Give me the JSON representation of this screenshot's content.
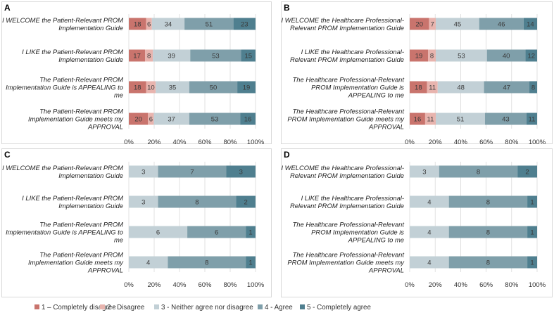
{
  "legend": [
    {
      "label": "1 – Completely disagree",
      "color": "#c9746d"
    },
    {
      "label": "2 - Disagree",
      "color": "#e8b4ae"
    },
    {
      "label": "3 - Neither agree nor disagree",
      "color": "#c2d0d6"
    },
    {
      "label": "4 - Agree",
      "color": "#7f9faa"
    },
    {
      "label": "5 - Completely agree",
      "color": "#4f7f8f"
    }
  ],
  "chart_data": [
    {
      "panel": "A",
      "type": "bar",
      "orientation": "horizontal",
      "stacked": "percent",
      "xlim": [
        0,
        100
      ],
      "xticks": [
        "0%",
        "20%",
        "40%",
        "60%",
        "80%",
        "100%"
      ],
      "categories": [
        [
          "I WELCOME the Patient-Relevant PROM",
          "Implementation Guide"
        ],
        [
          "I LIKE the Patient-Relevant PROM",
          "Implementation Guide"
        ],
        [
          "The Patient-Relevant PROM",
          "Implementation Guide is APPEALING to",
          "me"
        ],
        [
          "The Patient-Relevant PROM",
          "Implementation Guide meets my",
          "APPROVAL"
        ]
      ],
      "series": [
        {
          "name": "1 – Completely disagree",
          "values": [
            18,
            17,
            18,
            20
          ]
        },
        {
          "name": "2 - Disagree",
          "values": [
            6,
            8,
            10,
            6
          ]
        },
        {
          "name": "3 - Neither agree nor disagree",
          "values": [
            34,
            39,
            35,
            37
          ]
        },
        {
          "name": "4 - Agree",
          "values": [
            51,
            53,
            50,
            53
          ]
        },
        {
          "name": "5 - Completely agree",
          "values": [
            23,
            15,
            19,
            16
          ]
        }
      ]
    },
    {
      "panel": "B",
      "type": "bar",
      "orientation": "horizontal",
      "stacked": "percent",
      "xlim": [
        0,
        100
      ],
      "xticks": [
        "0%",
        "20%",
        "40%",
        "60%",
        "80%",
        "100%"
      ],
      "categories": [
        [
          "I WELCOME the Healthcare Professional-",
          "Relevant PROM Implementation Guide"
        ],
        [
          "I LIKE the Healthcare Professional-",
          "Relevant PROM Implementation Guide"
        ],
        [
          "The Healthcare Professional-Relevant",
          "PROM Implementation Guide is",
          "APPEALING to me"
        ],
        [
          "The Healthcare Professional-Relevant",
          "PROM Implementation Guide meets my",
          "APPROVAL"
        ]
      ],
      "series": [
        {
          "name": "1 – Completely disagree",
          "values": [
            20,
            19,
            18,
            16
          ]
        },
        {
          "name": "2 - Disagree",
          "values": [
            7,
            8,
            11,
            11
          ]
        },
        {
          "name": "3 - Neither agree nor disagree",
          "values": [
            45,
            53,
            48,
            51
          ]
        },
        {
          "name": "4 - Agree",
          "values": [
            46,
            40,
            47,
            43
          ]
        },
        {
          "name": "5 - Completely agree",
          "values": [
            14,
            12,
            8,
            11
          ]
        }
      ]
    },
    {
      "panel": "C",
      "type": "bar",
      "orientation": "horizontal",
      "stacked": "percent",
      "xlim": [
        0,
        100
      ],
      "xticks": [
        "0%",
        "20%",
        "40%",
        "60%",
        "80%",
        "100%"
      ],
      "categories": [
        [
          "I WELCOME the Patient-Relevant PROM",
          "Implementation Guide"
        ],
        [
          "I LIKE the Patient-Relevant PROM",
          "Implementation Guide"
        ],
        [
          "The Patient-Relevant PROM",
          "Implementation Guide is APPEALING to",
          "me"
        ],
        [
          "The Patient-Relevant PROM",
          "Implementation Guide meets my",
          "APPROVAL"
        ]
      ],
      "series": [
        {
          "name": "1 – Completely disagree",
          "values": [
            0,
            0,
            0,
            0
          ]
        },
        {
          "name": "2 - Disagree",
          "values": [
            0,
            0,
            0,
            0
          ]
        },
        {
          "name": "3 - Neither agree nor disagree",
          "values": [
            3,
            3,
            6,
            4
          ]
        },
        {
          "name": "4 - Agree",
          "values": [
            7,
            8,
            6,
            8
          ]
        },
        {
          "name": "5 - Completely agree",
          "values": [
            3,
            2,
            1,
            1
          ]
        }
      ]
    },
    {
      "panel": "D",
      "type": "bar",
      "orientation": "horizontal",
      "stacked": "percent",
      "xlim": [
        0,
        100
      ],
      "xticks": [
        "0%",
        "20%",
        "40%",
        "60%",
        "80%",
        "100%"
      ],
      "categories": [
        [
          "I WELCOME the Healthcare Professional-",
          "Relevant PROM Implementation Guide"
        ],
        [
          "I LIKE the Healthcare Professional-",
          "Relevant PROM Implementation Guide"
        ],
        [
          "The Healthcare Professional-Relevant",
          "PROM Implementation Guide is",
          "APPEALING to me"
        ],
        [
          "The Healthcare Professional-Relevant",
          "PROM Implementation Guide meets my",
          "APPROVAL"
        ]
      ],
      "series": [
        {
          "name": "1 – Completely disagree",
          "values": [
            0,
            0,
            0,
            0
          ]
        },
        {
          "name": "2 - Disagree",
          "values": [
            0,
            0,
            0,
            0
          ]
        },
        {
          "name": "3 - Neither agree nor disagree",
          "values": [
            3,
            4,
            4,
            4
          ]
        },
        {
          "name": "4 - Agree",
          "values": [
            8,
            8,
            8,
            8
          ]
        },
        {
          "name": "5 - Completely agree",
          "values": [
            2,
            1,
            1,
            1
          ]
        }
      ]
    }
  ]
}
